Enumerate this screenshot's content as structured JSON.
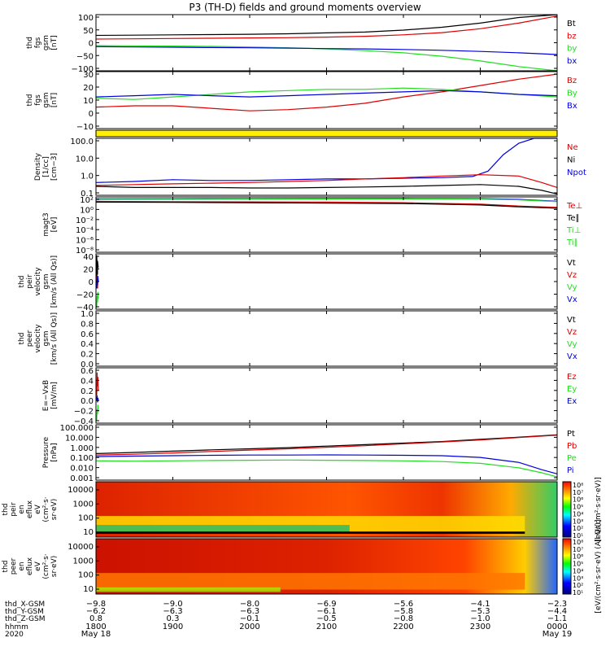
{
  "title": "P3 (TH-D) fields and ground moments overview",
  "colors": {
    "black": "#000000",
    "red": "#dd0000",
    "green": "#22dd22",
    "blue": "#0000dd",
    "yellow": "#ffee00"
  },
  "chart_data": [
    {
      "type": "line",
      "id": "p1",
      "ylabel": [
        "thd",
        "fgs",
        "gsm",
        "[nT]"
      ],
      "yticks": [
        "100",
        "50",
        "0",
        "−50",
        "−100"
      ],
      "ylim": [
        -100,
        100
      ],
      "legend": [
        {
          "text": "Bt",
          "color": "black"
        },
        {
          "text": "bz",
          "color": "red"
        },
        {
          "text": "by",
          "color": "green"
        },
        {
          "text": "bx",
          "color": "blue"
        }
      ],
      "series": [
        {
          "color": "black",
          "x": [
            0,
            0.5,
            1.0,
            1.5,
            2.0,
            2.5,
            3.0,
            3.5,
            4.0,
            4.5,
            5.0,
            5.5,
            6.0
          ],
          "y": [
            26,
            27,
            28,
            29,
            30,
            32,
            35,
            38,
            45,
            55,
            70,
            90,
            115
          ]
        },
        {
          "color": "red",
          "x": [
            0,
            0.5,
            1.0,
            1.5,
            2.0,
            2.5,
            3.0,
            3.5,
            4.0,
            4.5,
            5.0,
            5.5,
            6.0
          ],
          "y": [
            13,
            14,
            15,
            16,
            17,
            18,
            20,
            23,
            28,
            36,
            50,
            70,
            95
          ]
        },
        {
          "color": "green",
          "x": [
            0,
            0.5,
            1.0,
            1.5,
            2.0,
            2.5,
            3.0,
            3.5,
            4.0,
            4.5,
            5.0,
            5.5,
            6.0
          ],
          "y": [
            -10,
            -11,
            -12,
            -13,
            -15,
            -18,
            -22,
            -28,
            -36,
            -48,
            -65,
            -85,
            -110
          ]
        },
        {
          "color": "blue",
          "x": [
            0,
            0.5,
            1.0,
            1.5,
            2.0,
            2.5,
            3.0,
            3.5,
            4.0,
            4.5,
            5.0,
            5.5,
            6.0
          ],
          "y": [
            -14,
            -15,
            -16,
            -17,
            -18,
            -19,
            -21,
            -22,
            -24,
            -27,
            -31,
            -36,
            -42
          ]
        }
      ]
    },
    {
      "type": "line",
      "id": "p2",
      "ylabel": [
        "thd",
        "fgs",
        "gsm",
        "[nT]"
      ],
      "yticks": [
        "30",
        "20",
        "10",
        "0",
        "−10"
      ],
      "ylim": [
        -15,
        30
      ],
      "legend": [
        {
          "text": "Bz",
          "color": "red"
        },
        {
          "text": "By",
          "color": "green"
        },
        {
          "text": "Bx",
          "color": "blue"
        }
      ],
      "series": [
        {
          "color": "red",
          "x": [
            0,
            0.5,
            1.0,
            1.5,
            2.0,
            2.5,
            3.0,
            3.5,
            4.0,
            4.5,
            5.0,
            5.5,
            6.0
          ],
          "y": [
            2,
            3,
            3,
            1,
            -1,
            0,
            2,
            5,
            10,
            14,
            19,
            24,
            28
          ]
        },
        {
          "color": "green",
          "x": [
            0,
            0.5,
            1.0,
            1.5,
            2.0,
            2.5,
            3.0,
            3.5,
            4.0,
            4.5,
            5.0,
            5.5,
            6.0
          ],
          "y": [
            9,
            8,
            10,
            12,
            14,
            15,
            16,
            16,
            17,
            16,
            14,
            12,
            10
          ]
        },
        {
          "color": "blue",
          "x": [
            0,
            0.5,
            1.0,
            1.5,
            2.0,
            2.5,
            3.0,
            3.5,
            4.0,
            4.5,
            5.0,
            5.5,
            6.0
          ],
          "y": [
            10,
            11,
            12,
            11,
            10,
            11,
            12,
            13,
            14,
            15,
            14,
            12,
            11
          ]
        }
      ]
    },
    {
      "type": "heatmap",
      "id": "bar",
      "description_color": "yellow"
    },
    {
      "type": "line",
      "id": "p3",
      "ylabel": [
        "Density",
        "[1/cc]",
        "[cm−3]"
      ],
      "yticks": [
        "100.0",
        "10.0",
        "1.0",
        "0.1"
      ],
      "log": true,
      "ylim": [
        0.1,
        300
      ],
      "legend": [
        {
          "text": "Ne",
          "color": "red"
        },
        {
          "text": "Ni",
          "color": "black"
        },
        {
          "text": "Npot",
          "color": "blue"
        }
      ],
      "series": [
        {
          "color": "blue",
          "x": [
            0,
            0.5,
            1.0,
            1.5,
            2.0,
            2.5,
            3.0,
            3.5,
            4.0,
            4.5,
            4.9,
            5.1,
            5.3,
            5.5,
            5.7,
            6.0
          ],
          "y": [
            0.6,
            0.7,
            0.9,
            0.8,
            0.8,
            0.9,
            1.0,
            1.0,
            1.1,
            1.2,
            1.4,
            3.0,
            30,
            150,
            300,
            300
          ]
        },
        {
          "color": "red",
          "x": [
            0,
            0.5,
            1.0,
            1.5,
            2.0,
            2.5,
            3.0,
            3.5,
            4.0,
            4.5,
            5.0,
            5.5,
            5.8,
            6.0
          ],
          "y": [
            0.4,
            0.45,
            0.5,
            0.55,
            0.6,
            0.7,
            0.8,
            1.0,
            1.2,
            1.5,
            1.8,
            1.5,
            0.6,
            0.3
          ]
        },
        {
          "color": "black",
          "x": [
            0,
            0.5,
            1.0,
            1.5,
            2.0,
            2.5,
            3.0,
            3.5,
            4.0,
            4.5,
            5.0,
            5.5,
            5.8,
            6.0
          ],
          "y": [
            0.35,
            0.3,
            0.3,
            0.3,
            0.28,
            0.28,
            0.3,
            0.32,
            0.35,
            0.4,
            0.45,
            0.35,
            0.2,
            0.12
          ]
        }
      ]
    },
    {
      "type": "line",
      "id": "p4",
      "ylabel": [
        "magt3",
        "[eV]"
      ],
      "yticks": [
        "10²",
        "10⁰",
        "10⁻²",
        "10⁻⁴",
        "10⁻⁶",
        "10⁻⁸"
      ],
      "log": true,
      "ylim": [
        1e-09,
        500
      ],
      "legend": [
        {
          "text": "Te⊥",
          "color": "red"
        },
        {
          "text": "Te∥",
          "color": "black"
        },
        {
          "text": "Ti⊥",
          "color": "green"
        },
        {
          "text": "Ti∥",
          "color": "green"
        }
      ],
      "series": [
        {
          "color": "blue",
          "x": [
            0,
            1,
            2,
            3,
            4,
            5,
            5.5,
            6.0
          ],
          "y": [
            200,
            210,
            220,
            230,
            240,
            220,
            150,
            60
          ]
        },
        {
          "color": "red",
          "x": [
            0,
            1,
            2,
            3,
            4,
            5,
            5.5,
            6.0
          ],
          "y": [
            60,
            50,
            45,
            40,
            30,
            15,
            6,
            3
          ]
        },
        {
          "color": "black",
          "x": [
            0,
            1,
            2,
            3,
            4,
            5,
            5.5,
            6.0
          ],
          "y": [
            40,
            35,
            30,
            25,
            20,
            10,
            4,
            2
          ]
        },
        {
          "color": "green",
          "x": [
            0,
            1,
            2,
            3,
            4,
            5,
            5.5,
            6.0
          ],
          "y": [
            150,
            160,
            170,
            180,
            185,
            170,
            120,
            50
          ]
        }
      ]
    },
    {
      "type": "line",
      "id": "p5",
      "ylabel": [
        "thd",
        "peir",
        "velocity",
        "gsm",
        "[km/s (All Qs)]"
      ],
      "yticks": [
        "40",
        "20",
        "0",
        "−20",
        "−40"
      ],
      "ylim": [
        -40,
        40
      ],
      "legend": [
        {
          "text": "Vt",
          "color": "black"
        },
        {
          "text": "Vz",
          "color": "red"
        },
        {
          "text": "Vy",
          "color": "green"
        },
        {
          "text": "Vx",
          "color": "blue"
        }
      ],
      "series": [
        {
          "color": "black",
          "x": [
            0.01,
            0.01,
            0.02,
            0.02,
            0.03
          ],
          "y": [
            5,
            38,
            10,
            30,
            20
          ]
        },
        {
          "color": "red",
          "x": [
            0.01,
            0.015,
            0.02,
            0.025,
            0.03
          ],
          "y": [
            -5,
            10,
            -10,
            5,
            0
          ]
        },
        {
          "color": "green",
          "x": [
            0.01,
            0.015,
            0.02,
            0.025,
            0.03
          ],
          "y": [
            -38,
            -20,
            -30,
            -15,
            -25
          ]
        },
        {
          "color": "blue",
          "x": [
            0.01,
            0.015,
            0.02,
            0.025,
            0.03
          ],
          "y": [
            -10,
            5,
            -5,
            8,
            0
          ]
        }
      ]
    },
    {
      "type": "line",
      "id": "p6",
      "ylabel": [
        "thd",
        "peer",
        "velocity",
        "gsm",
        "[km/s (All Qs)]"
      ],
      "yticks": [
        "1.0",
        "0.8",
        "0.6",
        "0.4",
        "0.2",
        "0.0"
      ],
      "ylim": [
        0,
        1
      ],
      "legend": [
        {
          "text": "Vt",
          "color": "black"
        },
        {
          "text": "Vz",
          "color": "red"
        },
        {
          "text": "Vy",
          "color": "green"
        },
        {
          "text": "Vx",
          "color": "blue"
        }
      ],
      "series": []
    },
    {
      "type": "line",
      "id": "p7",
      "ylabel": [
        "E=−VxB",
        "[mV/m]"
      ],
      "yticks": [
        "0.6",
        "0.4",
        "0.2",
        "0.0",
        "−0.2",
        "−0.4"
      ],
      "ylim": [
        -0.5,
        0.7
      ],
      "legend": [
        {
          "text": "Ez",
          "color": "red"
        },
        {
          "text": "Ey",
          "color": "green"
        },
        {
          "text": "Ex",
          "color": "blue"
        }
      ],
      "series": [
        {
          "color": "red",
          "x": [
            0.01,
            0.015,
            0.02,
            0.025,
            0.03
          ],
          "y": [
            0.1,
            0.6,
            0.3,
            0.5,
            0.2
          ]
        },
        {
          "color": "green",
          "x": [
            0.01,
            0.015,
            0.02,
            0.025,
            0.03
          ],
          "y": [
            -0.45,
            -0.2,
            -0.3,
            -0.1,
            -0.25
          ]
        },
        {
          "color": "blue",
          "x": [
            0.01,
            0.015,
            0.02,
            0.025,
            0.03
          ],
          "y": [
            0.0,
            0.1,
            -0.05,
            0.05,
            0.0
          ]
        }
      ]
    },
    {
      "type": "line",
      "id": "p8",
      "ylabel": [
        "Pressure",
        "[nPa]"
      ],
      "yticks": [
        "100.000",
        "10.000",
        "1.000",
        "0.100",
        "0.010",
        "0.001"
      ],
      "log": true,
      "ylim": [
        0.001,
        200
      ],
      "legend": [
        {
          "text": "Pt",
          "color": "black"
        },
        {
          "text": "Pb",
          "color": "red"
        },
        {
          "text": "Pe",
          "color": "green"
        },
        {
          "text": "Pi",
          "color": "blue"
        }
      ],
      "series": [
        {
          "color": "black",
          "x": [
            0,
            0.5,
            1.0,
            1.5,
            2.0,
            2.5,
            3.0,
            3.5,
            4.0,
            4.5,
            5.0,
            5.5,
            6.0
          ],
          "y": [
            0.35,
            0.45,
            0.6,
            0.8,
            1.0,
            1.3,
            1.8,
            2.5,
            3.5,
            5.0,
            8.0,
            13,
            22
          ]
        },
        {
          "color": "red",
          "x": [
            0,
            0.5,
            1.0,
            1.5,
            2.0,
            2.5,
            3.0,
            3.5,
            4.0,
            4.5,
            5.0,
            5.5,
            6.0
          ],
          "y": [
            0.25,
            0.3,
            0.4,
            0.55,
            0.75,
            1.0,
            1.4,
            2.0,
            3.0,
            4.5,
            7.0,
            12,
            20
          ]
        },
        {
          "color": "blue",
          "x": [
            0,
            0.5,
            1.0,
            1.5,
            2.0,
            2.5,
            3.0,
            3.5,
            4.0,
            4.5,
            5.0,
            5.5,
            5.8,
            6.0
          ],
          "y": [
            0.18,
            0.2,
            0.22,
            0.24,
            0.25,
            0.25,
            0.26,
            0.25,
            0.24,
            0.22,
            0.15,
            0.05,
            0.01,
            0.004
          ]
        },
        {
          "color": "green",
          "x": [
            0,
            0.5,
            1.0,
            1.5,
            2.0,
            2.5,
            3.0,
            3.5,
            4.0,
            4.5,
            5.0,
            5.5,
            5.8,
            6.0
          ],
          "y": [
            0.07,
            0.065,
            0.07,
            0.075,
            0.08,
            0.085,
            0.08,
            0.075,
            0.07,
            0.06,
            0.04,
            0.015,
            0.005,
            0.002
          ]
        }
      ]
    },
    {
      "type": "heatmap",
      "id": "s1",
      "ylabel": [
        "thd",
        "peir",
        "en",
        "eflux",
        "eV",
        "(cm²·s·",
        "sr·eV)"
      ],
      "yticks": [
        "10000",
        "1000",
        "100",
        "10"
      ],
      "colorbar_label": "[eV/(cm²·s·sr·eV)]",
      "colorbar_ticks": [
        "10⁸",
        "10⁷",
        "10⁶",
        "10⁵",
        "10⁴",
        "10³",
        "10²",
        "10¹"
      ]
    },
    {
      "type": "heatmap",
      "id": "s2",
      "ylabel": [
        "thd",
        "peer",
        "en",
        "eflux",
        "eV",
        "(cm²·s·",
        "sr·eV)"
      ],
      "yticks": [
        "10000",
        "1000",
        "100",
        "10"
      ],
      "colorbar_label": "[eV/(cm²·s·sr·eV) (All Qs)]",
      "colorbar_ticks": [
        "10⁸",
        "10⁷",
        "10⁶",
        "10⁵",
        "10⁴",
        "10³",
        "10²",
        "10¹"
      ]
    }
  ],
  "xaxis": {
    "row_labels": [
      "thd_X-GSM",
      "thd_Y-GSM",
      "thd_Z-GSM",
      "hhmm",
      "2020"
    ],
    "columns": [
      {
        "v1": "−9.8",
        "v2": "−6.2",
        "v3": "0.8",
        "v4": "1800",
        "v5": "May 18"
      },
      {
        "v1": "−9.0",
        "v2": "−6.3",
        "v3": "0.3",
        "v4": "1900",
        "v5": ""
      },
      {
        "v1": "−8.0",
        "v2": "−6.3",
        "v3": "−0.1",
        "v4": "2000",
        "v5": ""
      },
      {
        "v1": "−6.9",
        "v2": "−6.1",
        "v3": "−0.5",
        "v4": "2100",
        "v5": ""
      },
      {
        "v1": "−5.6",
        "v2": "−5.8",
        "v3": "−0.8",
        "v4": "2200",
        "v5": ""
      },
      {
        "v1": "−4.1",
        "v2": "−5.3",
        "v3": "−1.0",
        "v4": "2300",
        "v5": ""
      },
      {
        "v1": "−2.3",
        "v2": "−4.4",
        "v3": "−1.1",
        "v4": "0000",
        "v5": "May 19"
      }
    ]
  }
}
